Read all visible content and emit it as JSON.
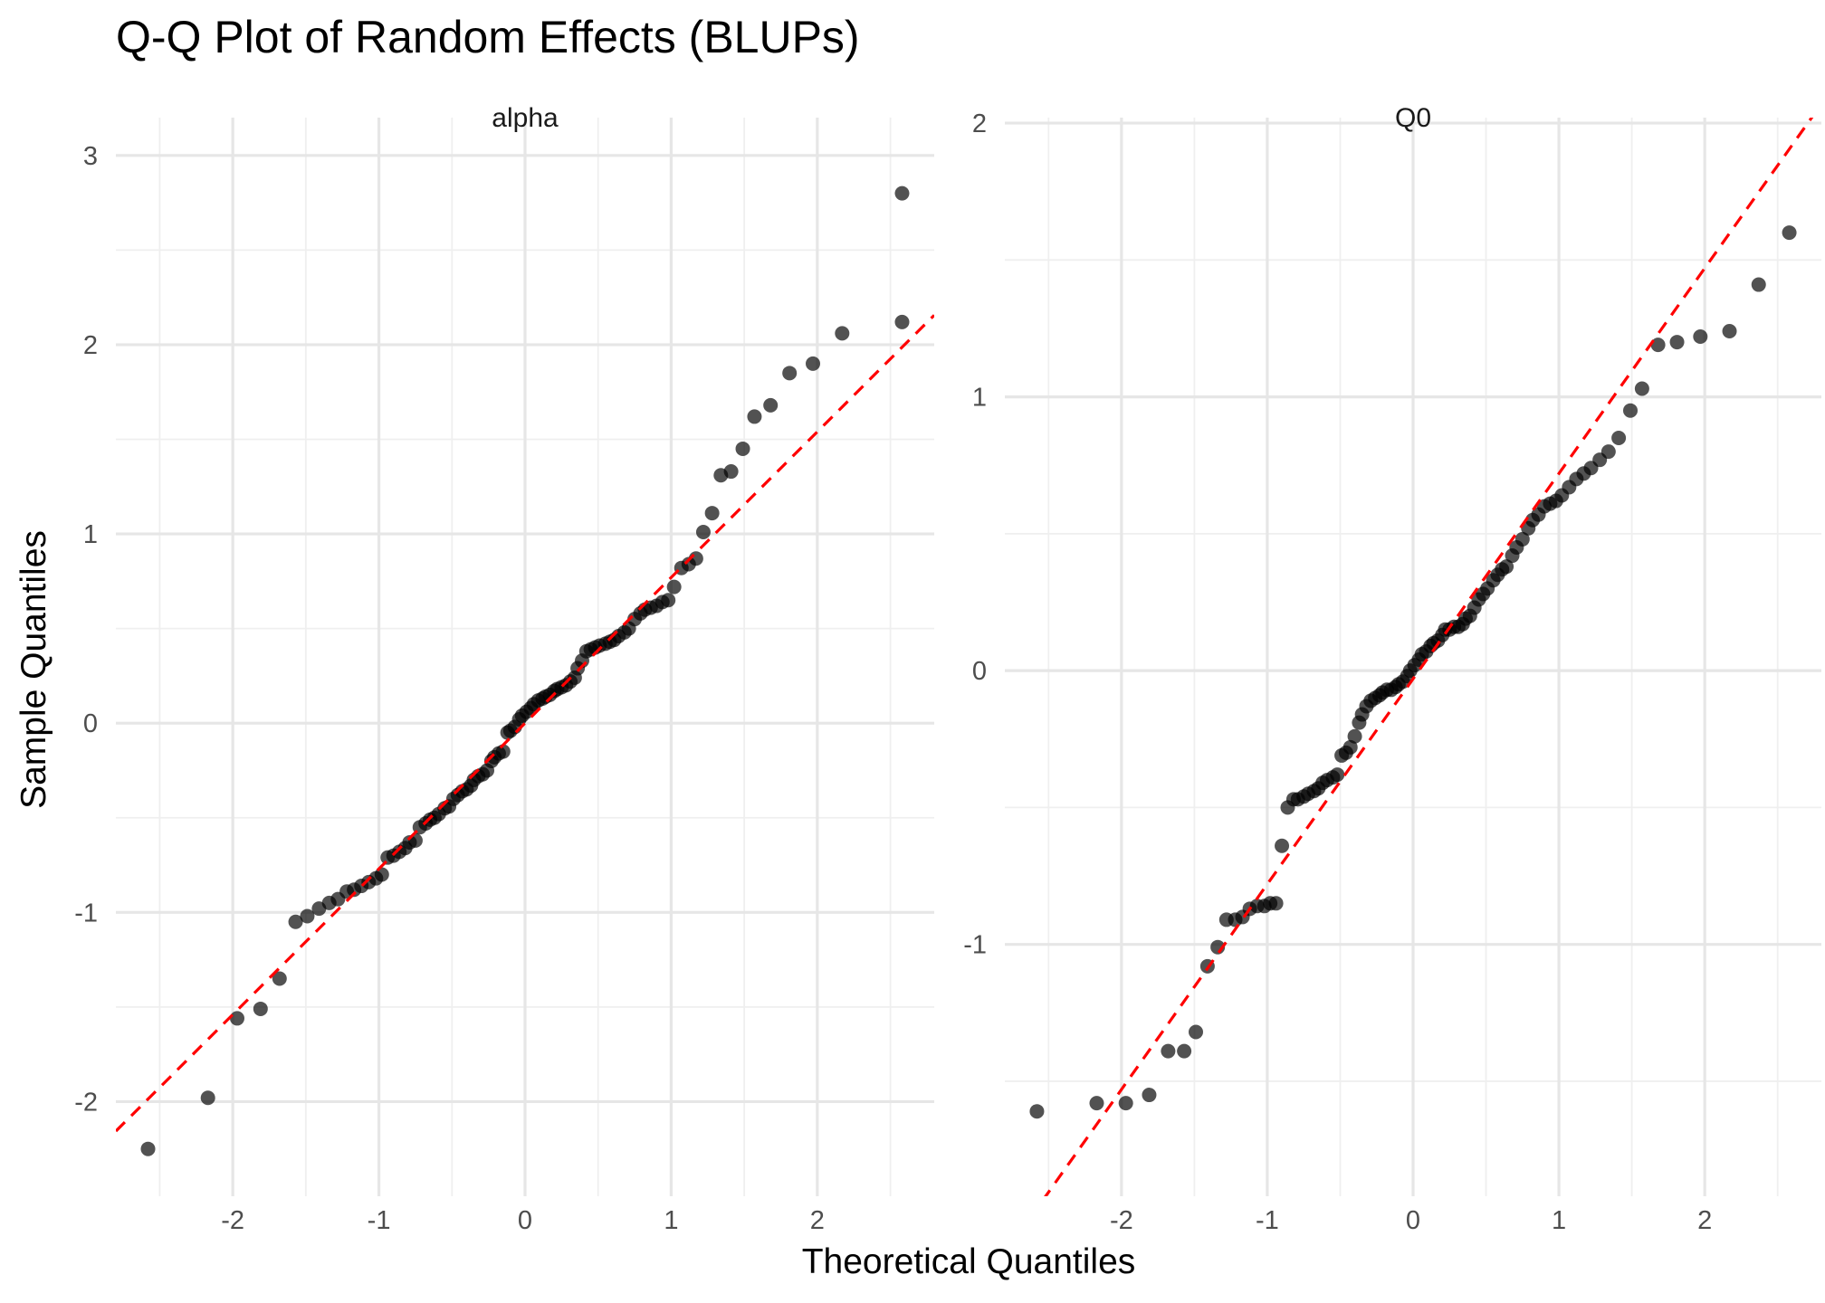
{
  "chart_data": {
    "type": "scatter",
    "title": "Q-Q Plot of Random Effects (BLUPs)",
    "xlabel": "Theoretical Quantiles",
    "ylabel": "Sample Quantiles",
    "grid": true,
    "point_color": "#000000",
    "reference_line_color": "#ff0000",
    "panels": [
      {
        "strip": "alpha",
        "xlim": [
          -2.8,
          2.8
        ],
        "ylim": [
          -2.5,
          3.2
        ],
        "x_ticks": [
          -2,
          -1,
          0,
          1,
          2
        ],
        "x_tick_labels": [
          "-2",
          "-1",
          "0",
          "1",
          "2"
        ],
        "y_ticks": [
          -2,
          -1,
          0,
          1,
          2,
          3
        ],
        "y_tick_labels": [
          "-2",
          "-1",
          "0",
          "1",
          "2",
          "3"
        ],
        "reference_line": {
          "intercept": 0.0,
          "slope": 0.77
        },
        "points": [
          [
            -2.58,
            -2.25
          ],
          [
            -2.17,
            -1.98
          ],
          [
            -1.97,
            -1.56
          ],
          [
            -1.81,
            -1.51
          ],
          [
            -1.68,
            -1.35
          ],
          [
            -1.57,
            -1.05
          ],
          [
            -1.49,
            -1.02
          ],
          [
            -1.41,
            -0.98
          ],
          [
            -1.34,
            -0.95
          ],
          [
            -1.28,
            -0.93
          ],
          [
            -1.22,
            -0.89
          ],
          [
            -1.17,
            -0.88
          ],
          [
            -1.12,
            -0.86
          ],
          [
            -1.07,
            -0.84
          ],
          [
            -1.02,
            -0.82
          ],
          [
            -0.98,
            -0.8
          ],
          [
            -0.94,
            -0.71
          ],
          [
            -0.9,
            -0.7
          ],
          [
            -0.86,
            -0.68
          ],
          [
            -0.82,
            -0.66
          ],
          [
            -0.79,
            -0.63
          ],
          [
            -0.75,
            -0.62
          ],
          [
            -0.72,
            -0.55
          ],
          [
            -0.68,
            -0.53
          ],
          [
            -0.65,
            -0.51
          ],
          [
            -0.62,
            -0.5
          ],
          [
            -0.59,
            -0.48
          ],
          [
            -0.55,
            -0.45
          ],
          [
            -0.52,
            -0.44
          ],
          [
            -0.49,
            -0.4
          ],
          [
            -0.46,
            -0.38
          ],
          [
            -0.43,
            -0.36
          ],
          [
            -0.4,
            -0.35
          ],
          [
            -0.37,
            -0.33
          ],
          [
            -0.35,
            -0.3
          ],
          [
            -0.32,
            -0.28
          ],
          [
            -0.29,
            -0.27
          ],
          [
            -0.26,
            -0.25
          ],
          [
            -0.23,
            -0.2
          ],
          [
            -0.21,
            -0.18
          ],
          [
            -0.18,
            -0.16
          ],
          [
            -0.15,
            -0.15
          ],
          [
            -0.12,
            -0.05
          ],
          [
            -0.1,
            -0.04
          ],
          [
            -0.07,
            -0.02
          ],
          [
            -0.04,
            0.02
          ],
          [
            -0.02,
            0.04
          ],
          [
            0.01,
            0.06
          ],
          [
            0.04,
            0.08
          ],
          [
            0.06,
            0.1
          ],
          [
            0.09,
            0.12
          ],
          [
            0.12,
            0.13
          ],
          [
            0.14,
            0.14
          ],
          [
            0.17,
            0.15
          ],
          [
            0.2,
            0.17
          ],
          [
            0.22,
            0.18
          ],
          [
            0.25,
            0.19
          ],
          [
            0.28,
            0.2
          ],
          [
            0.31,
            0.22
          ],
          [
            0.34,
            0.24
          ],
          [
            0.36,
            0.29
          ],
          [
            0.39,
            0.33
          ],
          [
            0.42,
            0.38
          ],
          [
            0.45,
            0.39
          ],
          [
            0.48,
            0.4
          ],
          [
            0.51,
            0.41
          ],
          [
            0.55,
            0.42
          ],
          [
            0.58,
            0.43
          ],
          [
            0.61,
            0.44
          ],
          [
            0.64,
            0.46
          ],
          [
            0.68,
            0.48
          ],
          [
            0.71,
            0.5
          ],
          [
            0.75,
            0.55
          ],
          [
            0.79,
            0.58
          ],
          [
            0.82,
            0.6
          ],
          [
            0.86,
            0.61
          ],
          [
            0.9,
            0.62
          ],
          [
            0.94,
            0.64
          ],
          [
            0.98,
            0.65
          ],
          [
            1.02,
            0.72
          ],
          [
            1.07,
            0.82
          ],
          [
            1.12,
            0.84
          ],
          [
            1.17,
            0.87
          ],
          [
            1.22,
            1.01
          ],
          [
            1.28,
            1.11
          ],
          [
            1.34,
            1.31
          ],
          [
            1.41,
            1.33
          ],
          [
            1.49,
            1.45
          ],
          [
            1.57,
            1.62
          ],
          [
            1.68,
            1.68
          ],
          [
            1.81,
            1.85
          ],
          [
            1.97,
            1.9
          ],
          [
            2.17,
            2.06
          ],
          [
            2.58,
            2.12
          ],
          [
            2.58,
            2.8
          ]
        ]
      },
      {
        "strip": "Q0",
        "xlim": [
          -2.8,
          2.8
        ],
        "ylim": [
          -1.92,
          2.02
        ],
        "x_ticks": [
          -2,
          -1,
          0,
          1,
          2
        ],
        "x_tick_labels": [
          "-2",
          "-1",
          "0",
          "1",
          "2"
        ],
        "y_ticks": [
          -1,
          0,
          1,
          2
        ],
        "y_tick_labels": [
          "-1",
          "0",
          "1",
          "2"
        ],
        "reference_line": {
          "intercept": -0.03,
          "slope": 0.75
        },
        "points": [
          [
            -2.58,
            -1.61
          ],
          [
            -2.17,
            -1.58
          ],
          [
            -1.97,
            -1.58
          ],
          [
            -1.81,
            -1.55
          ],
          [
            -1.68,
            -1.39
          ],
          [
            -1.57,
            -1.39
          ],
          [
            -1.49,
            -1.32
          ],
          [
            -1.41,
            -1.08
          ],
          [
            -1.34,
            -1.01
          ],
          [
            -1.28,
            -0.91
          ],
          [
            -1.22,
            -0.91
          ],
          [
            -1.17,
            -0.9
          ],
          [
            -1.12,
            -0.87
          ],
          [
            -1.07,
            -0.86
          ],
          [
            -1.02,
            -0.86
          ],
          [
            -0.98,
            -0.85
          ],
          [
            -0.94,
            -0.85
          ],
          [
            -0.9,
            -0.64
          ],
          [
            -0.86,
            -0.5
          ],
          [
            -0.82,
            -0.47
          ],
          [
            -0.79,
            -0.47
          ],
          [
            -0.75,
            -0.46
          ],
          [
            -0.72,
            -0.45
          ],
          [
            -0.68,
            -0.44
          ],
          [
            -0.65,
            -0.43
          ],
          [
            -0.62,
            -0.41
          ],
          [
            -0.59,
            -0.4
          ],
          [
            -0.55,
            -0.39
          ],
          [
            -0.52,
            -0.38
          ],
          [
            -0.49,
            -0.31
          ],
          [
            -0.46,
            -0.3
          ],
          [
            -0.43,
            -0.28
          ],
          [
            -0.4,
            -0.24
          ],
          [
            -0.37,
            -0.19
          ],
          [
            -0.35,
            -0.16
          ],
          [
            -0.32,
            -0.13
          ],
          [
            -0.29,
            -0.11
          ],
          [
            -0.26,
            -0.1
          ],
          [
            -0.23,
            -0.09
          ],
          [
            -0.21,
            -0.08
          ],
          [
            -0.18,
            -0.07
          ],
          [
            -0.15,
            -0.07
          ],
          [
            -0.12,
            -0.06
          ],
          [
            -0.1,
            -0.05
          ],
          [
            -0.07,
            -0.04
          ],
          [
            -0.04,
            -0.02
          ],
          [
            -0.02,
            0.0
          ],
          [
            0.01,
            0.02
          ],
          [
            0.04,
            0.04
          ],
          [
            0.06,
            0.06
          ],
          [
            0.09,
            0.07
          ],
          [
            0.12,
            0.09
          ],
          [
            0.14,
            0.1
          ],
          [
            0.17,
            0.11
          ],
          [
            0.2,
            0.13
          ],
          [
            0.22,
            0.15
          ],
          [
            0.25,
            0.15
          ],
          [
            0.28,
            0.16
          ],
          [
            0.31,
            0.16
          ],
          [
            0.34,
            0.17
          ],
          [
            0.36,
            0.19
          ],
          [
            0.39,
            0.2
          ],
          [
            0.42,
            0.23
          ],
          [
            0.45,
            0.26
          ],
          [
            0.48,
            0.28
          ],
          [
            0.51,
            0.3
          ],
          [
            0.55,
            0.33
          ],
          [
            0.58,
            0.35
          ],
          [
            0.61,
            0.37
          ],
          [
            0.64,
            0.38
          ],
          [
            0.68,
            0.42
          ],
          [
            0.71,
            0.45
          ],
          [
            0.75,
            0.48
          ],
          [
            0.79,
            0.52
          ],
          [
            0.82,
            0.55
          ],
          [
            0.86,
            0.57
          ],
          [
            0.9,
            0.6
          ],
          [
            0.94,
            0.61
          ],
          [
            0.98,
            0.62
          ],
          [
            1.02,
            0.64
          ],
          [
            1.07,
            0.67
          ],
          [
            1.12,
            0.7
          ],
          [
            1.17,
            0.72
          ],
          [
            1.22,
            0.74
          ],
          [
            1.28,
            0.77
          ],
          [
            1.34,
            0.8
          ],
          [
            1.41,
            0.85
          ],
          [
            1.49,
            0.95
          ],
          [
            1.57,
            1.03
          ],
          [
            1.68,
            1.19
          ],
          [
            1.81,
            1.2
          ],
          [
            1.97,
            1.22
          ],
          [
            2.17,
            1.24
          ],
          [
            2.37,
            1.41
          ],
          [
            2.58,
            1.6
          ]
        ]
      }
    ]
  }
}
